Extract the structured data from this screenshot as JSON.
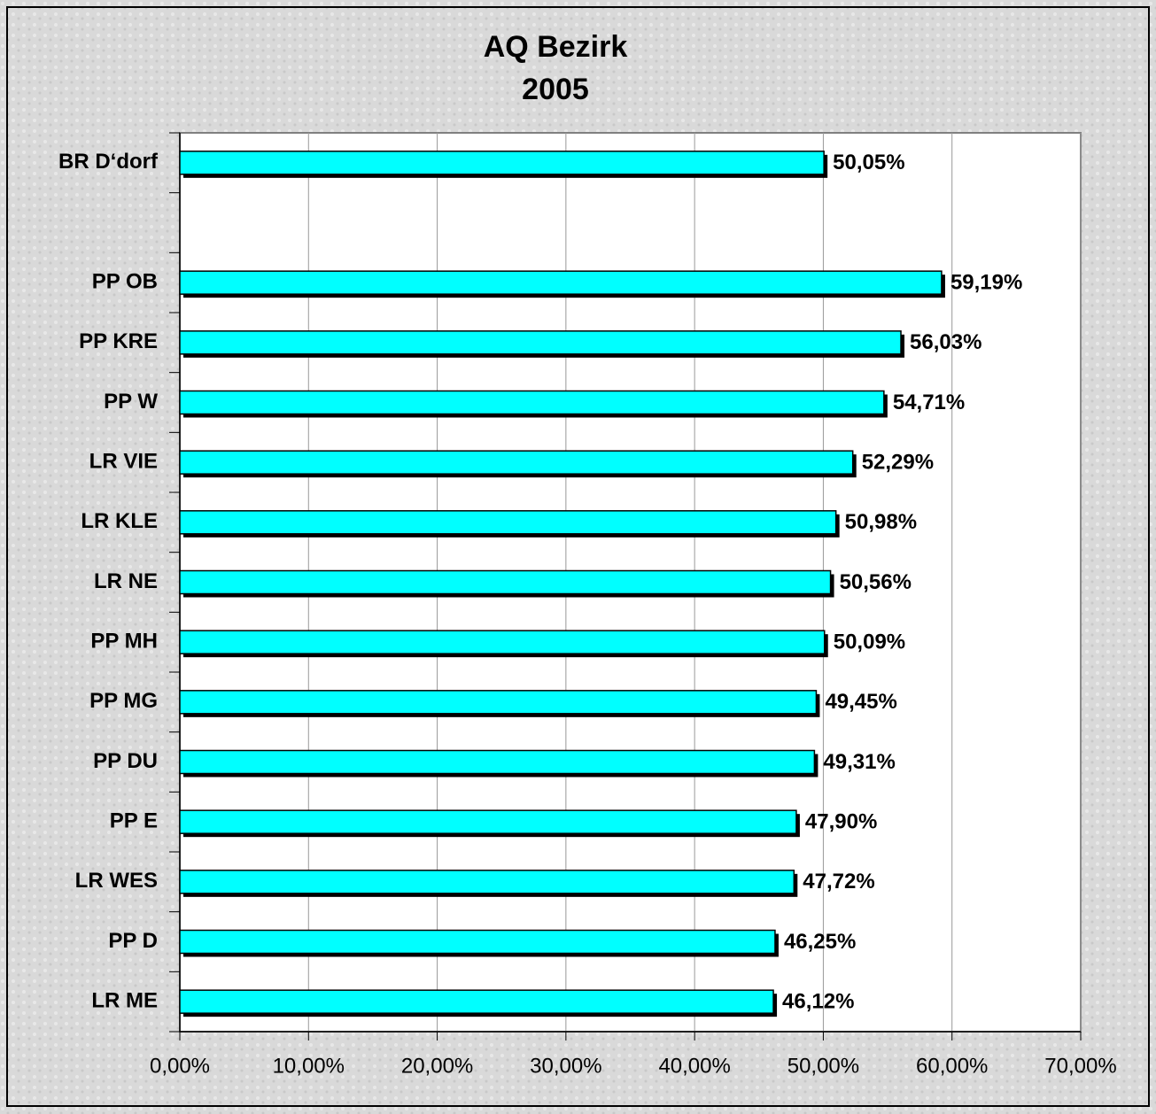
{
  "chart_data": {
    "type": "bar",
    "orientation": "horizontal",
    "title": "AQ Bezirk",
    "subtitle": "2005",
    "categories": [
      "BR D‘dorf",
      null,
      "PP OB",
      "PP KRE",
      "PP W",
      "LR VIE",
      "LR KLE",
      "LR NE",
      "PP MH",
      "PP MG",
      "PP DU",
      "PP E",
      "LR WES",
      "PP D",
      "LR ME"
    ],
    "values": [
      50.05,
      null,
      59.19,
      56.03,
      54.71,
      52.29,
      50.98,
      50.56,
      50.09,
      49.45,
      49.31,
      47.9,
      47.72,
      46.25,
      46.12
    ],
    "value_labels": [
      "50,05%",
      null,
      "59,19%",
      "56,03%",
      "54,71%",
      "52,29%",
      "50,98%",
      "50,56%",
      "50,09%",
      "49,45%",
      "49,31%",
      "47,90%",
      "47,72%",
      "46,25%",
      "46,12%"
    ],
    "color": "#00ffff",
    "xlim": [
      0,
      70
    ],
    "xticks": [
      {
        "value": 0,
        "label": "0,00%"
      },
      {
        "value": 10,
        "label": "10,00%"
      },
      {
        "value": 20,
        "label": "20,00%"
      },
      {
        "value": 30,
        "label": "30,00%"
      },
      {
        "value": 40,
        "label": "40,00%"
      },
      {
        "value": 50,
        "label": "50,00%"
      },
      {
        "value": 60,
        "label": "60,00%"
      },
      {
        "value": 70,
        "label": "70,00%"
      }
    ],
    "grid": true
  }
}
